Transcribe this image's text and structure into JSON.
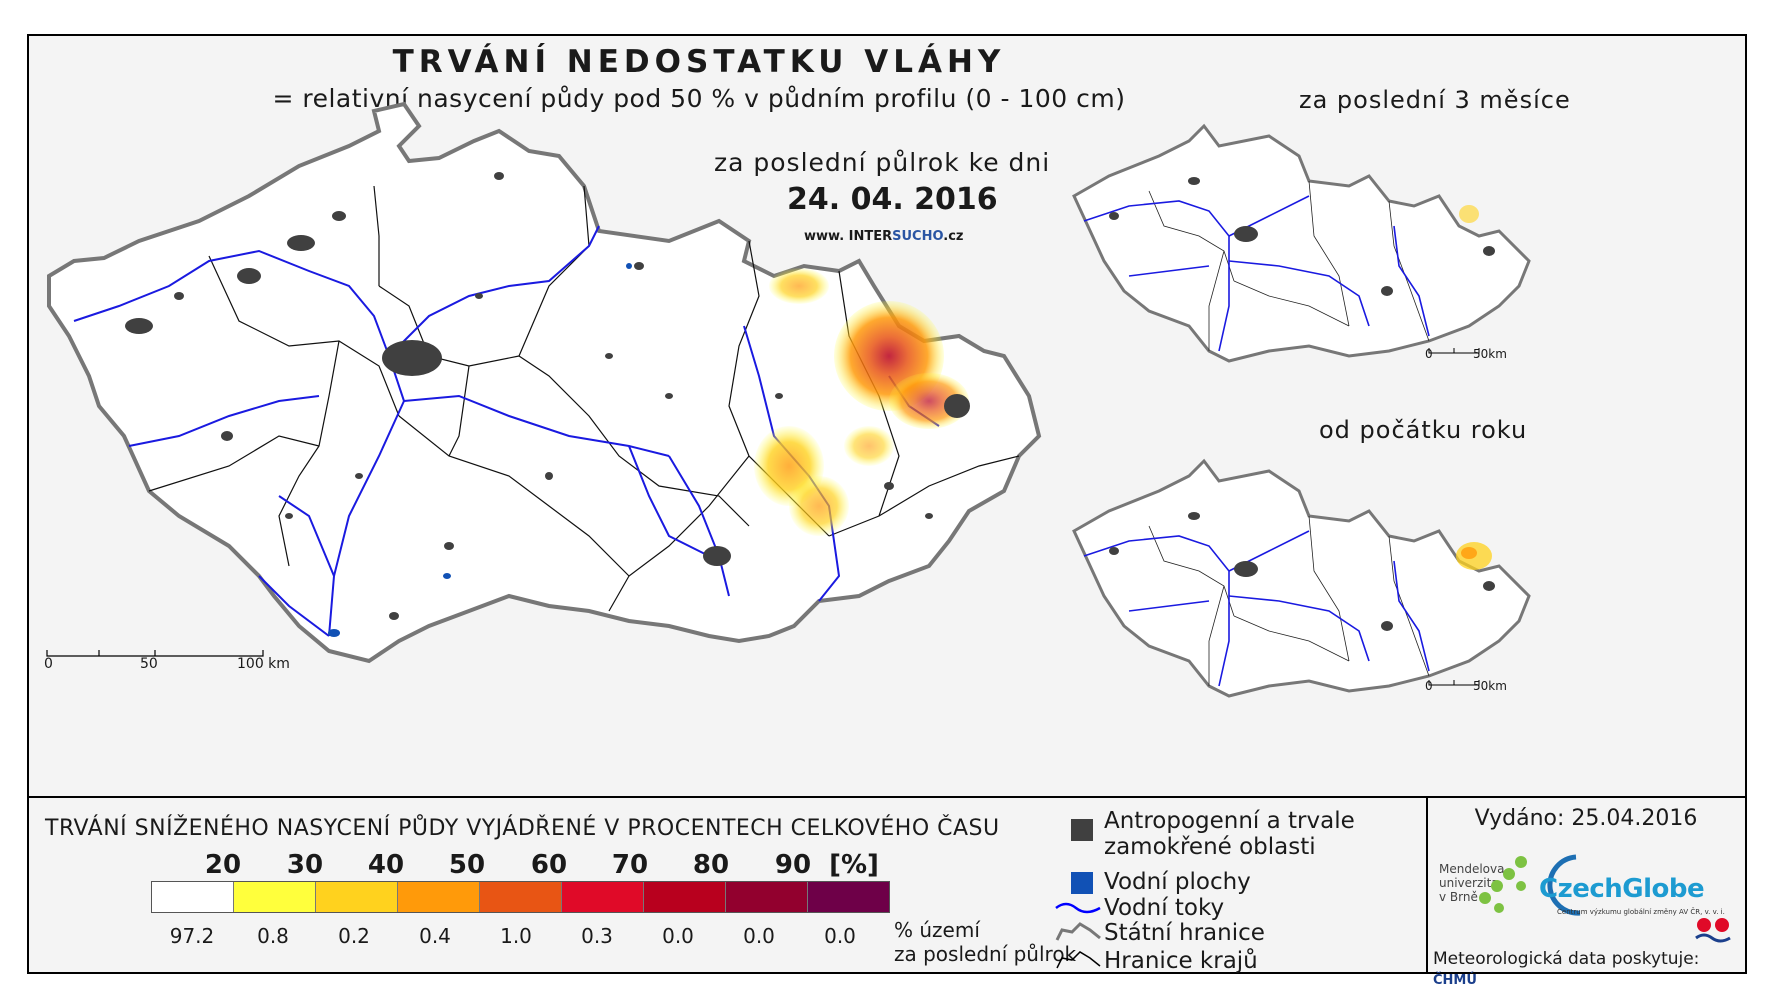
{
  "header": {
    "title": "TRVÁNÍ NEDOSTATKU VLÁHY",
    "subtitle": "= relativní nasycení půdy pod 50 % v půdním profilu (0 - 100 cm)",
    "period_label": "za poslední půlrok ke dni",
    "date": "24. 04. 2016",
    "website_prefix": "www. INTER",
    "website_highlight": "SUCHO",
    "website_suffix": ".cz"
  },
  "main_map": {
    "scale_labels": [
      "0",
      "50",
      "100 km"
    ]
  },
  "insets": [
    {
      "label": "za poslední 3 měsíce",
      "scale_labels": [
        "0",
        "50km"
      ]
    },
    {
      "label": "od počátku roku",
      "scale_labels": [
        "0",
        "50km"
      ]
    }
  ],
  "legend": {
    "title": "TRVÁNÍ SNÍŽENÉHO NASYCENÍ PŮDY VYJÁDŘENÉ V PROCENTECH CELKOVÉHO ČASU",
    "thresholds": [
      "20",
      "30",
      "40",
      "50",
      "60",
      "70",
      "80",
      "90",
      "[%]"
    ],
    "colors": [
      "#ffffff",
      "#ffff3c",
      "#ffd21e",
      "#ff9a0a",
      "#e85514",
      "#e00a28",
      "#b8001e",
      "#92002e",
      "#6e0048"
    ],
    "percentages": [
      "97.2",
      "0.8",
      "0.2",
      "0.4",
      "1.0",
      "0.3",
      "0.0",
      "0.0",
      "0.0"
    ],
    "percent_unit_line1": "% území",
    "percent_unit_line2": "za poslední půlrok",
    "symbols": [
      {
        "label_line1": "Antropogenní a trvale",
        "label_line2": "zamokřené oblasti",
        "icon": "dark-square-icon",
        "color": "#404040"
      },
      {
        "label_line1": "Vodní plochy",
        "icon": "blue-square-icon",
        "color": "#1151b5"
      },
      {
        "label_line1": "Vodní toky",
        "icon": "river-line-icon",
        "color": "#0000ff"
      },
      {
        "label_line1": "Státní hranice",
        "icon": "state-border-icon",
        "color": "#777777"
      },
      {
        "label_line1": "Hranice krajů",
        "icon": "region-border-icon",
        "color": "#000000"
      }
    ]
  },
  "footer": {
    "issued": "Vydáno: 25.04.2016",
    "mendel_line1": "Mendelova",
    "mendel_line2": "univerzita",
    "mendel_line3": "v Brně",
    "czechglobe": "CzechGlobe",
    "czechglobe_sub": "Centrum výzkumu globální změny AV ČR, v. v. i.",
    "meteo_label": "Meteorologická data poskytuje:",
    "chmu": "ČHMÚ"
  }
}
